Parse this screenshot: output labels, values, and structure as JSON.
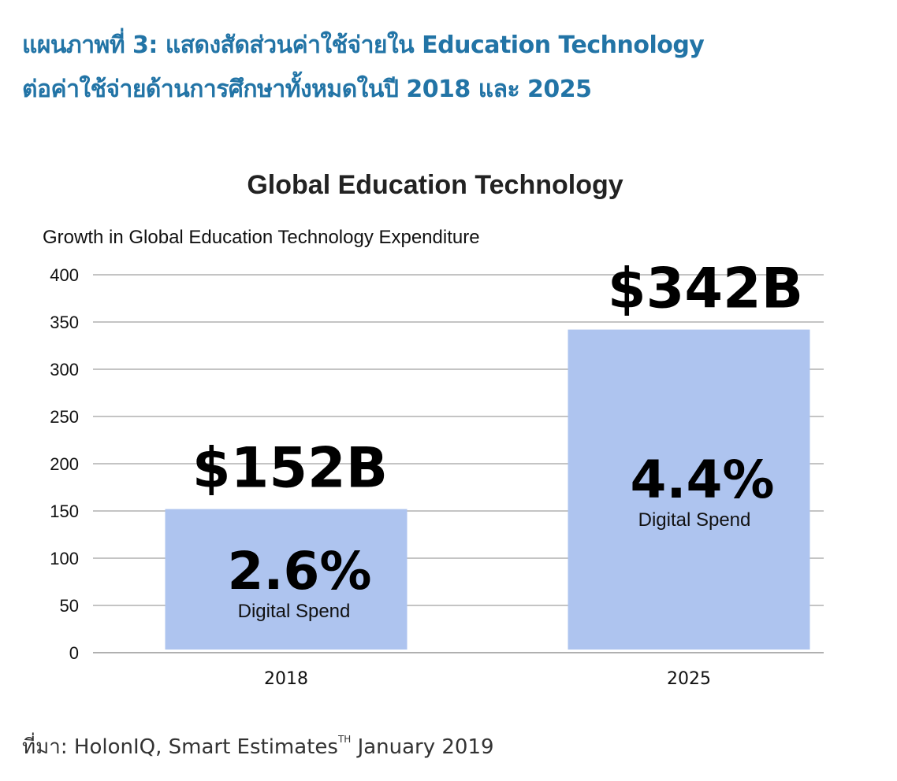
{
  "figure": {
    "title_line1": "แผนภาพที่ 3: แสดงสัดส่วนค่าใช้จ่ายใน Education Technology",
    "title_line2": "ต่อค่าใช้จ่ายด้านการศึกษาทั้งหมดในปี 2018 และ 2025",
    "source_text": "ที่มา: HolonIQ, Smart Estimates",
    "source_superscript": "TH",
    "source_date": "January 2019"
  },
  "colors": {
    "title": "#2274a6",
    "bar": "#aec4ef",
    "grid": "#b0b0b0",
    "text": "#111111"
  },
  "chart_data": {
    "type": "bar",
    "title": "Global Education Technology",
    "ylabel": "Growth in Global Education Technology Expenditure",
    "xlabel": "",
    "categories": [
      "2018",
      "2025"
    ],
    "values": [
      152,
      342
    ],
    "ylim": [
      0,
      400
    ],
    "yticks": [
      0,
      50,
      100,
      150,
      200,
      250,
      300,
      350,
      400
    ],
    "grid": true,
    "value_labels": [
      "$152B",
      "$342B"
    ],
    "share_labels": [
      "2.6%",
      "4.4%"
    ],
    "share_caption": "Digital Spend"
  }
}
